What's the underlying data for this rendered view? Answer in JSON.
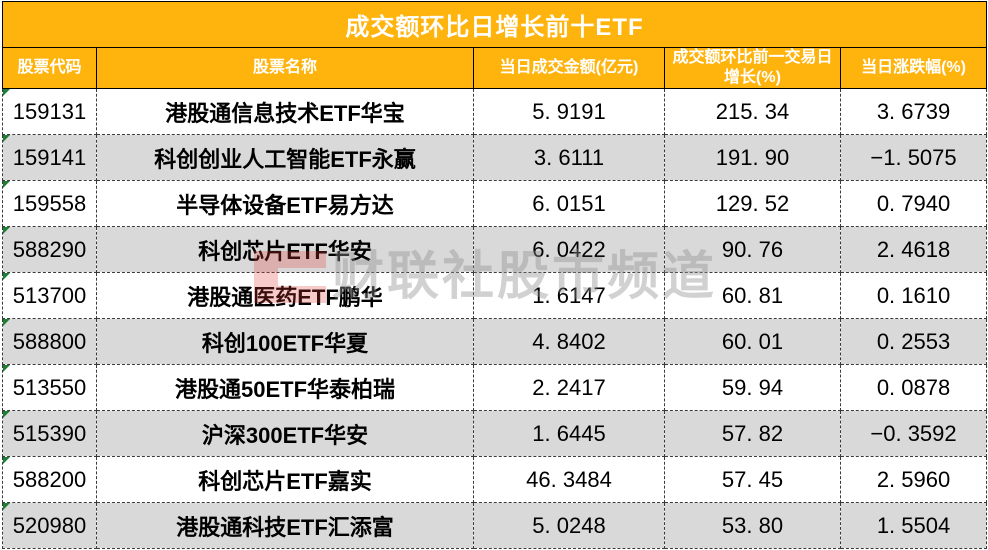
{
  "table": {
    "title": "成交额环比日增长前十ETF",
    "columns": [
      {
        "key": "code",
        "label": "股票代码"
      },
      {
        "key": "name",
        "label": "股票名称"
      },
      {
        "key": "amount",
        "label": "当日成交金额(亿元)"
      },
      {
        "key": "growth",
        "label": "成交额环比前一交易日增长(%)"
      },
      {
        "key": "change",
        "label": "当日涨跌幅(%)"
      }
    ],
    "rows": [
      {
        "code": "159131",
        "name": "港股通信息技术ETF华宝",
        "amount": "5. 9191",
        "growth": "215. 34",
        "change": "3. 6739"
      },
      {
        "code": "159141",
        "name": "科创创业人工智能ETF永赢",
        "amount": "3. 6111",
        "growth": "191. 90",
        "change": "−1. 5075"
      },
      {
        "code": "159558",
        "name": "半导体设备ETF易方达",
        "amount": "6. 0151",
        "growth": "129. 52",
        "change": "0. 7940"
      },
      {
        "code": "588290",
        "name": "科创芯片ETF华安",
        "amount": "6. 0422",
        "growth": "90. 76",
        "change": "2. 4618"
      },
      {
        "code": "513700",
        "name": "港股通医药ETF鹏华",
        "amount": "1. 6147",
        "growth": "60. 81",
        "change": "0. 1610"
      },
      {
        "code": "588800",
        "name": "科创100ETF华夏",
        "amount": "4. 8402",
        "growth": "60. 01",
        "change": "0. 2553"
      },
      {
        "code": "513550",
        "name": "港股通50ETF华泰柏瑞",
        "amount": "2. 2417",
        "growth": "59. 94",
        "change": "0. 0878"
      },
      {
        "code": "515390",
        "name": "沪深300ETF华安",
        "amount": "1. 6445",
        "growth": "57. 82",
        "change": "−0. 3592"
      },
      {
        "code": "588200",
        "name": "科创芯片ETF嘉实",
        "amount": "46. 3484",
        "growth": "57. 45",
        "change": "2. 5960"
      },
      {
        "code": "520980",
        "name": "港股通科技ETF汇添富",
        "amount": "5. 0248",
        "growth": "53. 80",
        "change": "1. 5504"
      }
    ]
  },
  "watermark": {
    "logo": "cailianshe-logo",
    "text": "财联社股市频道"
  },
  "colors": {
    "header_bg": "#FFB30D",
    "header_text": "#FFFFFF",
    "row_bg": "#FFFFFF",
    "row_alt_bg": "#D9D9D9",
    "body_text": "#000000",
    "grid_dashed": "#3A3A3A",
    "excel_indicator_green": "#1E7E34",
    "watermark_red": "#E03C32",
    "watermark_gray": "#8F8F8F"
  },
  "chart_data": {
    "type": "table",
    "title": "成交额环比日增长前十ETF",
    "columns": [
      "股票代码",
      "股票名称",
      "当日成交金额(亿元)",
      "成交额环比前一交易日增长(%)",
      "当日涨跌幅(%)"
    ],
    "rows": [
      [
        "159131",
        "港股通信息技术ETF华宝",
        5.9191,
        215.34,
        3.6739
      ],
      [
        "159141",
        "科创创业人工智能ETF永赢",
        3.6111,
        191.9,
        -1.5075
      ],
      [
        "159558",
        "半导体设备ETF易方达",
        6.0151,
        129.52,
        0.794
      ],
      [
        "588290",
        "科创芯片ETF华安",
        6.0422,
        90.76,
        2.4618
      ],
      [
        "513700",
        "港股通医药ETF鹏华",
        1.6147,
        60.81,
        0.161
      ],
      [
        "588800",
        "科创100ETF华夏",
        4.8402,
        60.01,
        0.2553
      ],
      [
        "513550",
        "港股通50ETF华泰柏瑞",
        2.2417,
        59.94,
        0.0878
      ],
      [
        "515390",
        "沪深300ETF华安",
        1.6445,
        57.82,
        -0.3592
      ],
      [
        "588200",
        "科创芯片ETF嘉实",
        46.3484,
        57.45,
        2.596
      ],
      [
        "520980",
        "港股通科技ETF汇添富",
        5.0248,
        53.8,
        1.5504
      ]
    ]
  }
}
